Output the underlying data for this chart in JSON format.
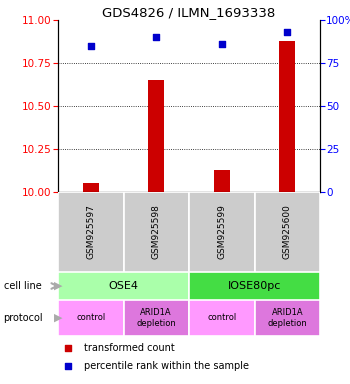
{
  "title": "GDS4826 / ILMN_1693338",
  "samples": [
    "GSM925597",
    "GSM925598",
    "GSM925599",
    "GSM925600"
  ],
  "bar_values": [
    10.05,
    10.65,
    10.13,
    10.88
  ],
  "dot_values": [
    85,
    90,
    86,
    93
  ],
  "ylim_left": [
    10,
    11
  ],
  "ylim_right": [
    0,
    100
  ],
  "yticks_left": [
    10,
    10.25,
    10.5,
    10.75,
    11
  ],
  "yticks_right": [
    0,
    25,
    50,
    75,
    100
  ],
  "ytick_right_labels": [
    "0",
    "25",
    "50",
    "75",
    "100%"
  ],
  "cell_line_labels": [
    "OSE4",
    "IOSE80pc"
  ],
  "cell_line_spans": [
    [
      0,
      1
    ],
    [
      2,
      3
    ]
  ],
  "cell_line_colors": [
    "#aaffaa",
    "#44dd44"
  ],
  "protocol_labels": [
    "control",
    "ARID1A\ndepletion",
    "control",
    "ARID1A\ndepletion"
  ],
  "protocol_colors": [
    "#ff99ff",
    "#dd77dd",
    "#ff99ff",
    "#dd77dd"
  ],
  "sample_box_color": "#cccccc",
  "bar_color": "#cc0000",
  "dot_color": "#0000cc",
  "legend_bar_label": "transformed count",
  "legend_dot_label": "percentile rank within the sample",
  "left_label_cellline": "cell line",
  "left_label_protocol": "protocol",
  "arrow_color": "#aaaaaa",
  "bar_width": 0.25,
  "dot_size": 18
}
